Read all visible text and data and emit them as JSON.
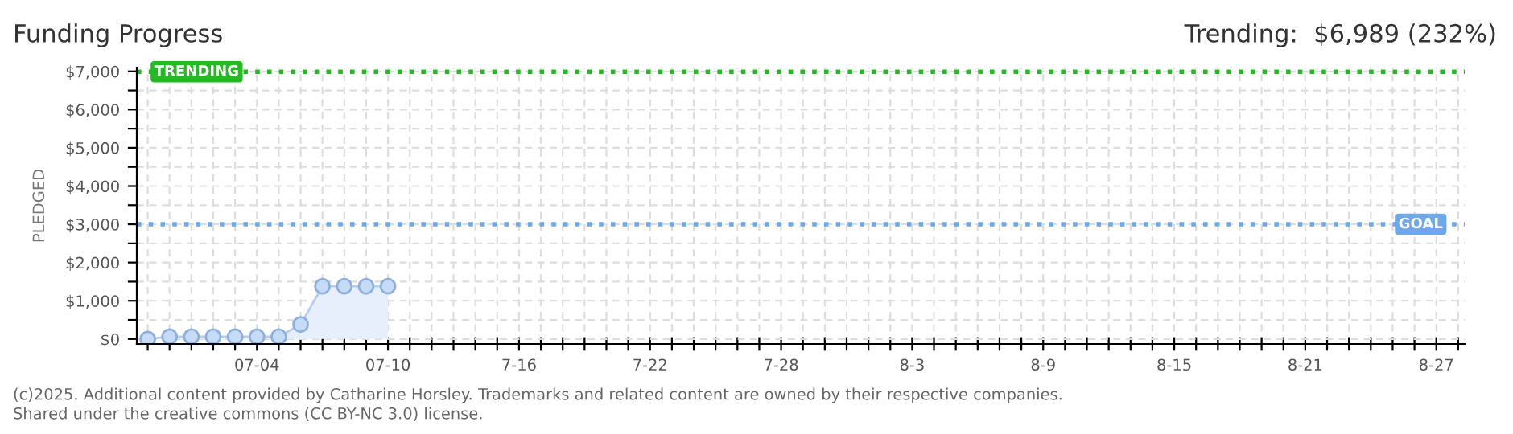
{
  "chart_data": {
    "type": "area",
    "title": "Funding Progress",
    "subtitle": "Trending:  $6,989 (232%)",
    "ylabel": "PLEDGED",
    "categories": [
      null,
      null,
      null,
      null,
      null,
      "07-04",
      null,
      null,
      null,
      null,
      null,
      "07-10",
      null,
      null,
      null,
      null,
      null,
      "7-16",
      null,
      null,
      null,
      null,
      null,
      "7-22",
      null,
      null,
      null,
      null,
      null,
      "7-28",
      null,
      null,
      null,
      null,
      null,
      "8-3",
      null,
      null,
      null,
      null,
      null,
      "8-9",
      null,
      null,
      null,
      null,
      null,
      "8-15",
      null,
      null,
      null,
      null,
      null,
      "8-21",
      null,
      null,
      null,
      null,
      null,
      "8-27",
      null
    ],
    "series": [
      {
        "color": "#8fb0dc",
        "values": [
          0,
          60,
          60,
          60,
          60,
          60,
          60,
          380,
          1380,
          1380,
          1380,
          1380,
          null,
          null,
          null,
          null,
          null,
          null,
          null,
          null,
          null,
          null,
          null,
          null,
          null,
          null,
          null,
          null,
          null,
          null,
          null,
          null,
          null,
          null,
          null,
          null,
          null,
          null,
          null,
          null,
          null,
          null,
          null,
          null,
          null,
          null,
          null,
          null,
          null,
          null,
          null,
          null,
          null,
          null,
          null,
          null,
          null,
          null,
          null,
          null,
          null
        ]
      }
    ],
    "ylim": [
      -130,
      7100
    ],
    "yticks": [
      {
        "value": 0,
        "label": "$0"
      },
      {
        "value": 500,
        "label": null
      },
      {
        "value": 1000,
        "label": "$1,000"
      },
      {
        "value": 1500,
        "label": null
      },
      {
        "value": 2000,
        "label": "$2,000"
      },
      {
        "value": 2500,
        "label": null
      },
      {
        "value": 3000,
        "label": "$3,000"
      },
      {
        "value": 3500,
        "label": null
      },
      {
        "value": 4000,
        "label": "$4,000"
      },
      {
        "value": 4500,
        "label": null
      },
      {
        "value": 5000,
        "label": "$5,000"
      },
      {
        "value": 5500,
        "label": null
      },
      {
        "value": 6000,
        "label": "$6,000"
      },
      {
        "value": 6500,
        "label": null
      },
      {
        "value": 7000,
        "label": "$7,000"
      }
    ],
    "ref_lines": [
      {
        "axis": "y",
        "value": 6989,
        "label": "TRENDING",
        "color": "#22bb22",
        "line_style": "dotted"
      },
      {
        "axis": "y",
        "value": 3000,
        "label": "GOAL",
        "color": "#6fa8e8",
        "line_style": "dotted"
      }
    ],
    "grid": true,
    "marker": "circle",
    "line_style": "solid",
    "annotations": [
      "(c)2025. Additional content provided by Catharine Horsley. Trademarks and related content are owned by their respective companies.",
      "Shared under the creative commons (CC BY-NC 3.0) license."
    ]
  }
}
